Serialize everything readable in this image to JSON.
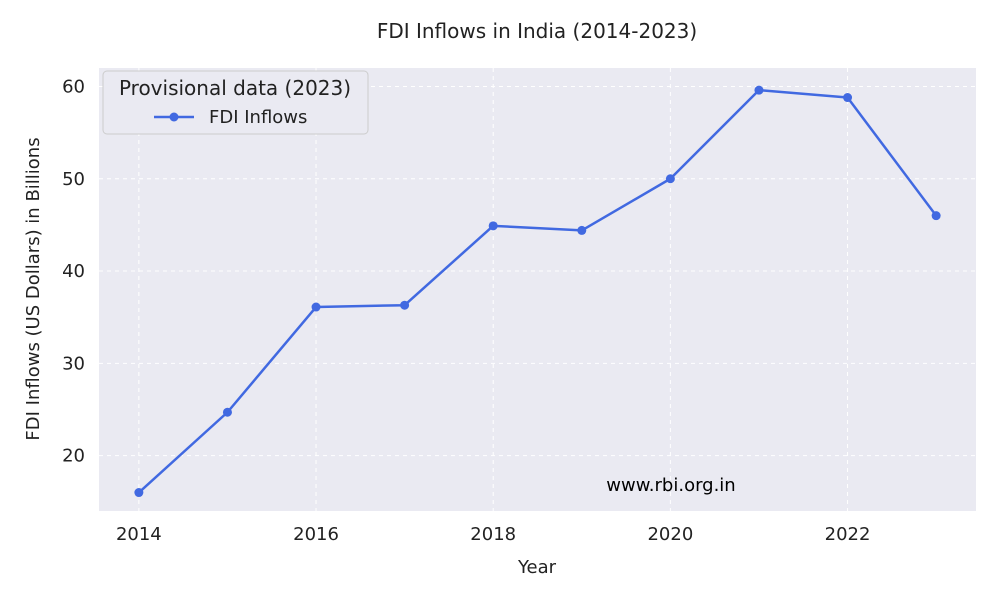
{
  "chart_data": {
    "type": "line",
    "title": "FDI Inflows in India (2014-2023)",
    "xlabel": "Year",
    "ylabel": "FDI Inflows (US Dollars) in Billions",
    "x": [
      2014,
      2015,
      2016,
      2017,
      2018,
      2019,
      2020,
      2021,
      2022,
      2023
    ],
    "series": [
      {
        "name": "FDI Inflows",
        "values": [
          16.0,
          24.7,
          36.1,
          36.3,
          44.9,
          44.4,
          50.0,
          59.6,
          58.8,
          46.0
        ],
        "color": "#4169e1",
        "marker": "circle"
      }
    ],
    "xticks": [
      2014,
      2016,
      2018,
      2020,
      2022
    ],
    "yticks": [
      20,
      30,
      40,
      50,
      60
    ],
    "xlim": [
      2013.55,
      2023.45
    ],
    "ylim": [
      14.0,
      62.0
    ],
    "grid": true,
    "legend": {
      "title": "Provisional data (2023)",
      "location": "upper-left"
    },
    "annotation": "www.rbi.org.in",
    "plot_background": "#eaeaf2",
    "grid_color": "#ffffff"
  }
}
